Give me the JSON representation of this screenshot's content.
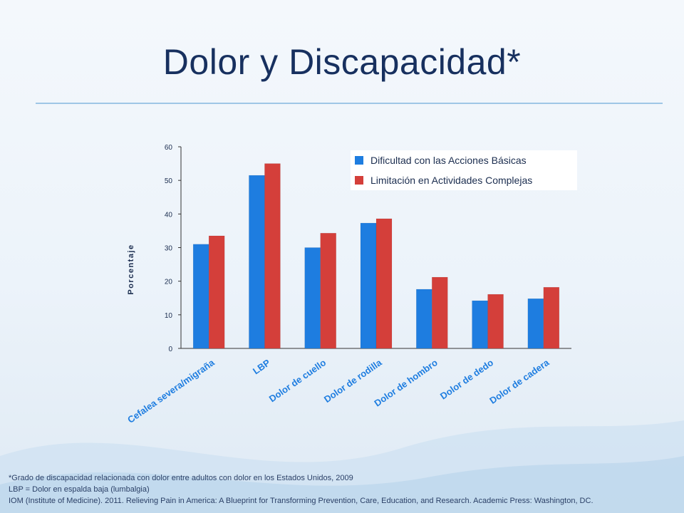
{
  "slide": {
    "title": "Dolor y Discapacidad*"
  },
  "colors": {
    "series1": "#1e7de0",
    "series2": "#d43f3a",
    "title": "#17305f",
    "axis": "#333333"
  },
  "chart_data": {
    "type": "bar",
    "title": "",
    "xlabel": "",
    "ylabel": "Porcentaje",
    "ylim": [
      0,
      60
    ],
    "yticks": [
      0,
      10,
      20,
      30,
      40,
      50,
      60
    ],
    "grid": false,
    "legend_position": "top-right",
    "categories": [
      "Cefalea severa/migraña",
      "LBP",
      "Dolor de cuello",
      "Dolor de rodilla",
      "Dolor de hombro",
      "Dolor de dedo",
      "Dolor de cadera"
    ],
    "series": [
      {
        "name": "Dificultad con las Acciones Básicas",
        "values": [
          31,
          51.5,
          30,
          37.3,
          17.6,
          14.2,
          14.8
        ]
      },
      {
        "name": "Limitación en Actividades Complejas",
        "values": [
          33.5,
          55,
          34.3,
          38.6,
          21.2,
          16.1,
          18.2
        ]
      }
    ]
  },
  "footnotes": [
    "*Grado de discapacidad relacionada con dolor entre adultos con dolor  en los Estados Unidos, 2009",
    "LBP = Dolor en espalda baja (lumbalgia)",
    "IOM (Institute  of Medicine). 2011. Relieving Pain in America: A Blueprint for Transforming Prevention, Care, Education,  and Research. Academic Press: Washington,   DC."
  ]
}
